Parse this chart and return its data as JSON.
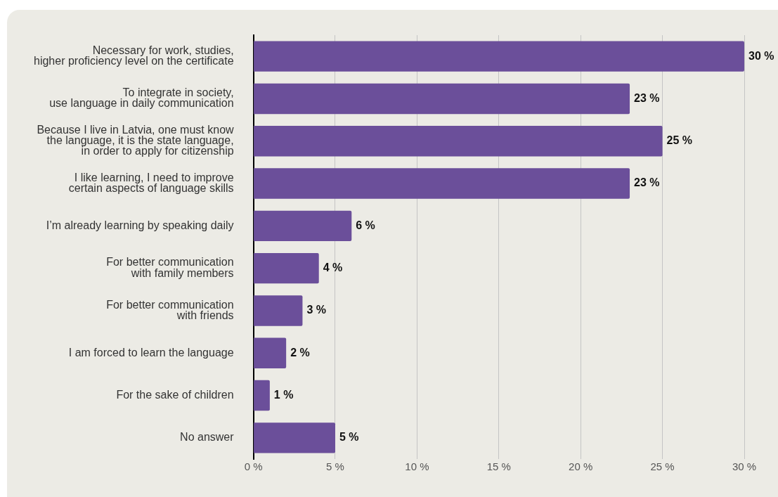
{
  "chart_data": {
    "type": "bar",
    "orientation": "horizontal",
    "categories": [
      "Necessary for work, studies,\nhigher proficiency level on the certificate",
      "To integrate in society,\nuse language in daily communication",
      "Because I live in Latvia, one must know\nthe language, it is the state language,\nin order to apply for citizenship",
      "I like learning, I need to improve\ncertain aspects of language skills",
      "I’m already learning by speaking daily",
      "For better communication\nwith family members",
      "For better communication\nwith friends",
      "I am forced to learn the language",
      "For the sake of children",
      "No answer"
    ],
    "values": [
      30,
      23,
      25,
      23,
      6,
      4,
      3,
      2,
      1,
      5
    ],
    "value_labels": [
      "30 %",
      "23 %",
      "25 %",
      "23 %",
      "6 %",
      "4 %",
      "3 %",
      "2 %",
      "1 %",
      "5 %"
    ],
    "color": "#6b4f9a",
    "xlim": [
      0,
      30
    ],
    "xticks": [
      {
        "value": 0,
        "label": "0 %"
      },
      {
        "value": 5,
        "label": "5 %"
      },
      {
        "value": 10,
        "label": "10 %"
      },
      {
        "value": 15,
        "label": "15 %"
      },
      {
        "value": 20,
        "label": "20 %"
      },
      {
        "value": 25,
        "label": "25 %"
      },
      {
        "value": 30,
        "label": "30 %"
      }
    ],
    "grid": "x",
    "legend": false
  }
}
